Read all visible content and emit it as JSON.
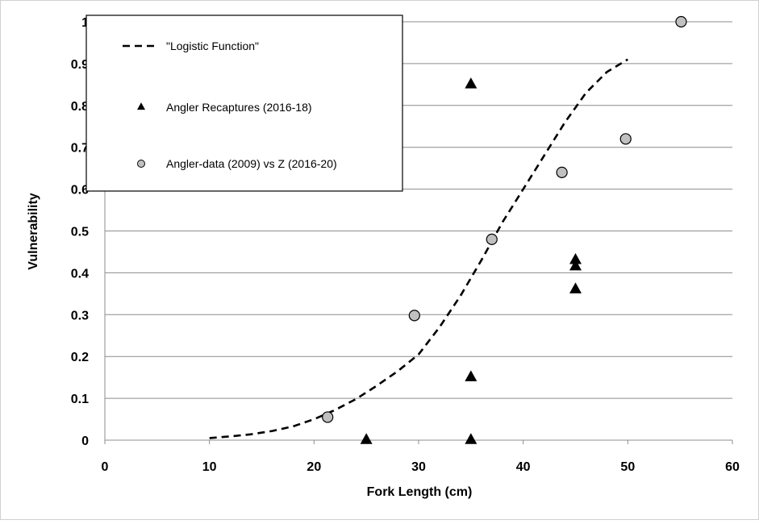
{
  "chart_data": {
    "type": "scatter",
    "xlabel": "Fork Length (cm)",
    "ylabel": "Vulnerability",
    "xlim": [
      0,
      60
    ],
    "ylim": [
      0,
      1
    ],
    "x_ticks": [
      "0",
      "10",
      "20",
      "30",
      "40",
      "50",
      "60"
    ],
    "y_ticks": [
      "0",
      "0.1",
      "0.2",
      "0.3",
      "0.4",
      "0.5",
      "0.6",
      "0.7",
      "0.8",
      "0.9",
      "1"
    ],
    "grid": "horizontal",
    "legend_position": "top-left",
    "series": [
      {
        "name": "\"Logistic Function\"",
        "kind": "line",
        "style": "dashed",
        "color": "#000000",
        "x": [
          10,
          12,
          14,
          16,
          18,
          20,
          22,
          24,
          26,
          28,
          30,
          32,
          34,
          36,
          38,
          40,
          42,
          44,
          46,
          48,
          50
        ],
        "y": [
          0.005,
          0.009,
          0.014,
          0.022,
          0.033,
          0.05,
          0.072,
          0.098,
          0.13,
          0.165,
          0.205,
          0.27,
          0.345,
          0.43,
          0.52,
          0.6,
          0.68,
          0.76,
          0.83,
          0.88,
          0.91
        ]
      },
      {
        "name": "Angler Recaptures (2016-18)",
        "kind": "marker",
        "marker": "triangle",
        "color": "#000000",
        "x": [
          25,
          35,
          35,
          35,
          45,
          45,
          45
        ],
        "y": [
          0,
          0,
          0.15,
          0.85,
          0.43,
          0.415,
          0.36
        ]
      },
      {
        "name": "Angler-data (2009) vs Z (2016-20)",
        "kind": "marker",
        "marker": "circle",
        "color": "#c0c0c0",
        "x": [
          21.3,
          29.6,
          37.0,
          43.7,
          49.8,
          55.1
        ],
        "y": [
          0.055,
          0.298,
          0.48,
          0.64,
          0.72,
          1.0
        ]
      }
    ]
  }
}
